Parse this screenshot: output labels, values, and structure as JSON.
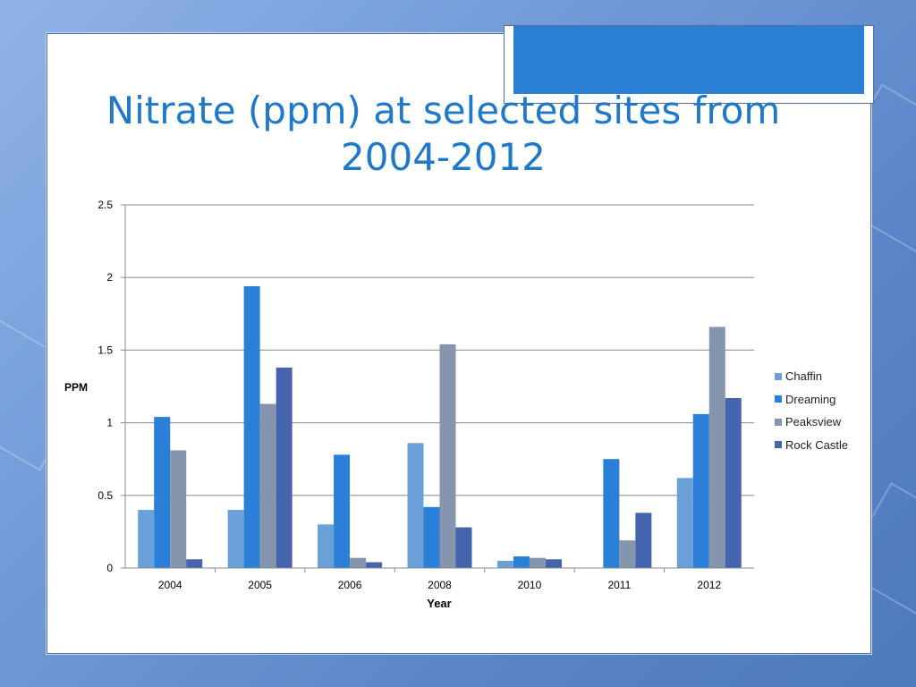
{
  "slide": {
    "title_line1": "Nitrate (ppm) at selected sites from",
    "title_line2": "2004-2012"
  },
  "chart_data": {
    "type": "bar",
    "categories": [
      "2004",
      "2005",
      "2006",
      "2008",
      "2010",
      "2011",
      "2012"
    ],
    "series": [
      {
        "name": "Chaffin",
        "color": "#6aa0d8",
        "values": [
          0.4,
          0.4,
          0.3,
          0.86,
          0.05,
          0.0,
          0.62
        ]
      },
      {
        "name": "Dreaming",
        "color": "#2a7fd6",
        "values": [
          1.04,
          1.94,
          0.78,
          0.42,
          0.08,
          0.75,
          1.06
        ]
      },
      {
        "name": "Peaksview",
        "color": "#8595ad",
        "values": [
          0.81,
          1.13,
          0.07,
          1.54,
          0.07,
          0.19,
          1.66
        ]
      },
      {
        "name": "Rock Castle",
        "color": "#4664ad",
        "values": [
          0.06,
          1.38,
          0.04,
          0.28,
          0.06,
          0.38,
          1.17
        ]
      }
    ],
    "xlabel": "Year",
    "ylabel": "PPM",
    "ylim": [
      0,
      2.5
    ],
    "yticks": [
      "0",
      "0.5",
      "1",
      "1.5",
      "2",
      "2.5"
    ],
    "grid": true,
    "legend_position": "right"
  }
}
